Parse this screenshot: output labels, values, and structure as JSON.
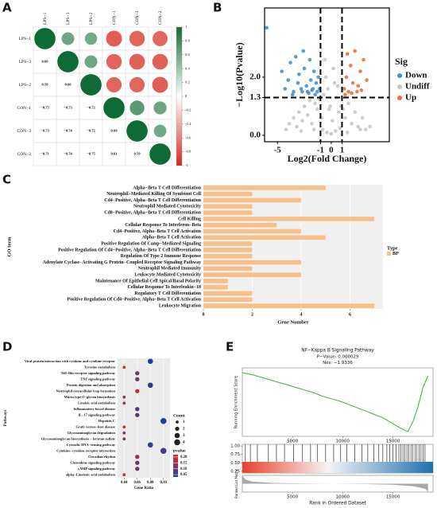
{
  "chart_data": [
    {
      "type": "corrplot",
      "label": "A",
      "categories": [
        "LPS−1",
        "LPS−3",
        "LPS−2",
        "CON−1",
        "CON−3",
        "CON−2"
      ],
      "diagonal": [
        1,
        1,
        1,
        1,
        1,
        1
      ],
      "values": [
        [
          0.6
        ],
        [
          0.58,
          0.6
        ],
        [
          -0.75,
          -0.73,
          -0.72
        ],
        [
          -0.73,
          -0.74,
          -0.72,
          0.69
        ],
        [
          -0.71,
          -0.74,
          -0.75,
          0.61,
          0.59
        ]
      ],
      "value_labels": [
        [
          "0.60"
        ],
        [
          "0.58",
          "0.60"
        ],
        [
          "−0.75",
          "−0.73",
          "−0.72"
        ],
        [
          "−0.73",
          "−0.74",
          "−0.72",
          "0.69"
        ],
        [
          "−0.71",
          "−0.74",
          "−0.75",
          "0.61",
          "0.59"
        ]
      ],
      "zlim": [
        -1,
        1
      ],
      "zticks": [
        1,
        0.8,
        0.6,
        0.4,
        0.2,
        0,
        -0.2,
        -0.4,
        -0.6,
        -0.8,
        -1
      ],
      "colors": [
        "#d42a1f",
        "#ffffff",
        "#0f6b35"
      ]
    },
    {
      "type": "scatter",
      "label": "B",
      "xlabel": "Log2(Fold Change)",
      "ylabel": "−Log10(Pvalue)",
      "xlim": [
        -6.2,
        5.4
      ],
      "ylim": [
        -0.22,
        4.38
      ],
      "xticks": [
        -5,
        -1,
        0,
        1
      ],
      "yticks": [
        {
          "value": 0,
          "label": "0.0"
        },
        1.3,
        {
          "value": 2,
          "label": "2.0"
        }
      ],
      "vlines": [
        -1,
        1
      ],
      "hline": 1.3,
      "legend_title": "Sig",
      "series": [
        {
          "name": "Down",
          "color": "#4a90c9",
          "x": [
            -6.0,
            -4.6,
            -4.3,
            -4.0,
            -3.8,
            -3.5,
            -3.3,
            -3.1,
            -3.0,
            -2.8,
            -2.6,
            -2.5,
            -2.3,
            -2.2,
            -2.0,
            -1.9,
            -1.7,
            -1.6,
            -1.5,
            -1.4,
            -1.3,
            -1.2,
            -1.1,
            -3.6,
            -2.7,
            -2.1,
            -1.8
          ],
          "values": [
            3.7,
            2.2,
            1.6,
            1.9,
            2.5,
            1.5,
            2.7,
            1.8,
            2.1,
            1.6,
            2.9,
            2.3,
            1.7,
            1.5,
            2.6,
            1.9,
            1.6,
            2.2,
            1.4,
            1.8,
            1.5,
            2.0,
            1.6,
            1.4,
            1.5,
            1.45,
            1.55
          ]
        },
        {
          "name": "Undiff",
          "color": "#c8c8c8",
          "x": [
            -4.2,
            -3.9,
            -3.5,
            -3.2,
            -3.0,
            -2.7,
            -2.5,
            -2.2,
            -2.0,
            -1.8,
            -1.5,
            -1.3,
            -1.1,
            -0.9,
            -0.7,
            -0.5,
            -0.3,
            -0.1,
            0.1,
            0.3,
            0.5,
            0.7,
            0.9,
            1.1,
            1.3,
            1.6,
            1.9,
            2.2,
            2.5,
            2.9,
            3.2,
            3.6,
            -0.8,
            -0.4,
            0.0,
            0.4,
            0.8,
            -0.6,
            -0.2,
            0.2,
            0.6,
            -2.8,
            -1.6,
            1.5,
            2.7
          ],
          "values": [
            0.2,
            0.4,
            0.6,
            0.3,
            0.8,
            0.5,
            1.0,
            0.7,
            1.2,
            0.4,
            1.1,
            0.9,
            1.25,
            0.6,
            1.4,
            2.0,
            1.6,
            1.0,
            0.5,
            1.8,
            1.3,
            0.8,
            1.0,
            0.9,
            0.6,
            1.1,
            0.4,
            0.8,
            0.3,
            0.6,
            0.2,
            0.3,
            0.2,
            0.1,
            0.05,
            0.15,
            0.25,
            2.6,
            0.9,
            2.3,
            1.7,
            0.15,
            0.2,
            0.1,
            0.2
          ]
        },
        {
          "name": "Up",
          "color": "#e8733a",
          "x": [
            1.2,
            1.4,
            1.6,
            1.8,
            2.0,
            2.2,
            2.5,
            2.7,
            3.0,
            3.3,
            1.3,
            1.9,
            2.4,
            2.8,
            1.5
          ],
          "values": [
            1.6,
            2.0,
            1.5,
            2.4,
            1.8,
            2.9,
            1.7,
            2.2,
            2.6,
            1.9,
            1.4,
            1.45,
            1.5,
            1.55,
            2.8
          ]
        }
      ]
    },
    {
      "type": "bar",
      "label": "C",
      "xlabel": "Gene Number",
      "ylabel": "GO term",
      "legend_title": "Type",
      "categories": [
        "Alpha−Beta T Cell Differentiation",
        "Neutrophil−Mediated Killing Of Symbiont Cell",
        "Cd4−Positive, Alpha−Beta T Cell Differentiation",
        "Neutrophil Mediated Cytotoxicity",
        "Cd8−Positive, Alpha−Beta T Cell Differentiation",
        "Cell Killing",
        "Cellular Response To Interferon−Beta",
        "Cd4−Positive, Alpha−Beta T Cell Activation",
        "Alpha−Beta T Cell Activation",
        "Positive Regulation Of Camp−Mediated Signaling",
        "Positive Regulation Of Cd4−Positive, Alpha−Beta T Cell Differentiation",
        "Regulation Of Type 2 Immune Response",
        "Adenylate Cyclase−Activating G Protein−Coupled Receptor Signaling Pathway",
        "Neutrophil Mediated Immunity",
        "Leukocyte Mediated Cytotoxicity",
        "Maintenance Of Epithelial Cell Apical/Basal Polarity",
        "Cellular Response To Interleukin−18",
        "Regulatory T Cell Differentiation",
        "Positive Regulation Of Cd4−Positive, Alpha−Beta T Cell Activation",
        "Leukocyte Migration"
      ],
      "series": [
        {
          "name": "BP",
          "color": "#f7c088",
          "values": [
            5,
            2,
            4,
            2,
            2,
            7,
            3,
            4,
            5,
            2,
            2,
            2,
            4,
            2,
            4,
            1,
            1,
            2,
            2,
            7
          ]
        }
      ],
      "xlim": [
        0,
        7.35
      ],
      "xticks": [
        0,
        2,
        4,
        6
      ],
      "grid": true
    },
    {
      "type": "dotplot",
      "label": "D",
      "xlabel": "Gene Ratio",
      "ylabel": "Pathways",
      "categories": [
        "Viral protein interaction with cytokine and cytokine receptor",
        "Tyrosine metabolism",
        "Toll−like receptor signaling pathway",
        "TNF signaling pathway",
        "Protein digestion and absorption",
        "Neutrophil extracellular trap formation",
        "Mucin type O−glycan biosynthesis",
        "Linoleic acid metabolism",
        "Inflammatory bowel disease",
        "IL−17 signaling pathway",
        "Hepatitis C",
        "Graft−versus−host disease",
        "Glycosaminoglycan degradation",
        "Glycosaminoglycan biosynthesis − keratan sulfate",
        "Cytosolic DNA−sensing pathway",
        "Cytokine−cytokine receptor interaction",
        "Circadian rhythm",
        "Chemokine signaling pathway",
        "cAMP signaling pathway",
        "alpha−Linolenic acid metabolism"
      ],
      "values": [
        0.08,
        0.04,
        0.06,
        0.06,
        0.08,
        0.06,
        0.04,
        0.04,
        0.06,
        0.06,
        0.1,
        0.04,
        0.04,
        0.04,
        0.08,
        0.1,
        0.06,
        0.06,
        0.06,
        0.04
      ],
      "sizes": [
        3,
        1,
        2,
        2,
        3,
        2,
        1,
        1,
        2,
        2,
        4,
        1,
        1,
        1,
        3,
        4,
        2,
        2,
        2,
        1
      ],
      "pvalues": [
        0.03,
        0.21,
        0.12,
        0.12,
        0.04,
        0.19,
        0.13,
        0.14,
        0.08,
        0.08,
        0.03,
        0.19,
        0.12,
        0.13,
        0.04,
        0.06,
        0.13,
        0.09,
        0.1,
        0.2
      ],
      "xlim": [
        0.03,
        0.11
      ],
      "xticks": [
        {
          "value": 0.04,
          "label": "0.04"
        },
        {
          "value": 0.06,
          "label": "0.06"
        },
        {
          "value": 0.08,
          "label": "0.08"
        },
        {
          "value": 0.1,
          "label": "0.10"
        }
      ],
      "size_title": "Count",
      "size_ticks": [
        1,
        2,
        3,
        4
      ],
      "color_title": "pvalue",
      "zlim": [
        0.03,
        0.22
      ],
      "zticks": [
        {
          "value": 0.2,
          "label": "0.20"
        },
        0.15,
        {
          "value": 0.1,
          "label": "0.10"
        },
        0.05
      ],
      "colors": [
        "#223d9c",
        "#e8282b"
      ],
      "grid": true
    },
    {
      "type": "gsea",
      "label": "E",
      "title": "NF−Kappa B Signaling Pathway",
      "annotations": [
        "P−Value: 0.000029",
        "Nes: −1.9336"
      ],
      "ylabel": "Running Enrichment Score",
      "metric_label": "Ranked List Metric",
      "xlabel": "Rank in Ordered Dataset",
      "xlim": [
        0,
        19000
      ],
      "xticks": [
        5000,
        10000,
        15000
      ],
      "color": "#3cb43c",
      "es": {
        "x": [
          0,
          1000,
          2000,
          3000,
          4000,
          5000,
          6000,
          7000,
          8000,
          9000,
          10000,
          11000,
          12000,
          13000,
          14000,
          15000,
          16000,
          16500,
          17000,
          17500,
          18000,
          18500
        ],
        "values": [
          0,
          -0.02,
          -0.05,
          -0.08,
          -0.11,
          -0.14,
          -0.17,
          -0.2,
          -0.24,
          -0.27,
          -0.3,
          -0.34,
          -0.38,
          -0.42,
          -0.46,
          -0.52,
          -0.58,
          -0.6,
          -0.5,
          -0.35,
          -0.15,
          -0.03
        ]
      },
      "es_ylim": [
        -0.65,
        0.05
      ],
      "hits": [
        300,
        800,
        1500,
        2600,
        3400,
        4200,
        5100,
        6000,
        6800,
        7500,
        8300,
        9100,
        9800,
        10400,
        11200,
        11900,
        12500,
        13100,
        13600,
        14000,
        14400,
        14700,
        15000,
        15300,
        15600,
        15800,
        16000,
        16200,
        16400,
        16600,
        16800,
        17000,
        17200,
        17400,
        17600,
        17800,
        18000,
        18200
      ],
      "hit_ylim": [
        0.2,
        1.05
      ],
      "hit_ticks": [
        {
          "value": 1,
          "label": "1.00"
        },
        {
          "value": 0.75,
          "label": "0.75"
        },
        {
          "value": 0.5,
          "label": "0.50"
        },
        {
          "value": 0.25,
          "label": "0.25"
        }
      ],
      "metric": {
        "x": [
          0,
          300,
          1000,
          3000,
          6000,
          9000,
          12000,
          15000,
          17000,
          18200,
          18500
        ],
        "values": [
          0.95,
          0.5,
          0.25,
          0.1,
          0.03,
          0,
          -0.03,
          -0.12,
          -0.3,
          -0.6,
          -0.95
        ]
      },
      "metric_ylim": [
        -1,
        1
      ]
    }
  ]
}
